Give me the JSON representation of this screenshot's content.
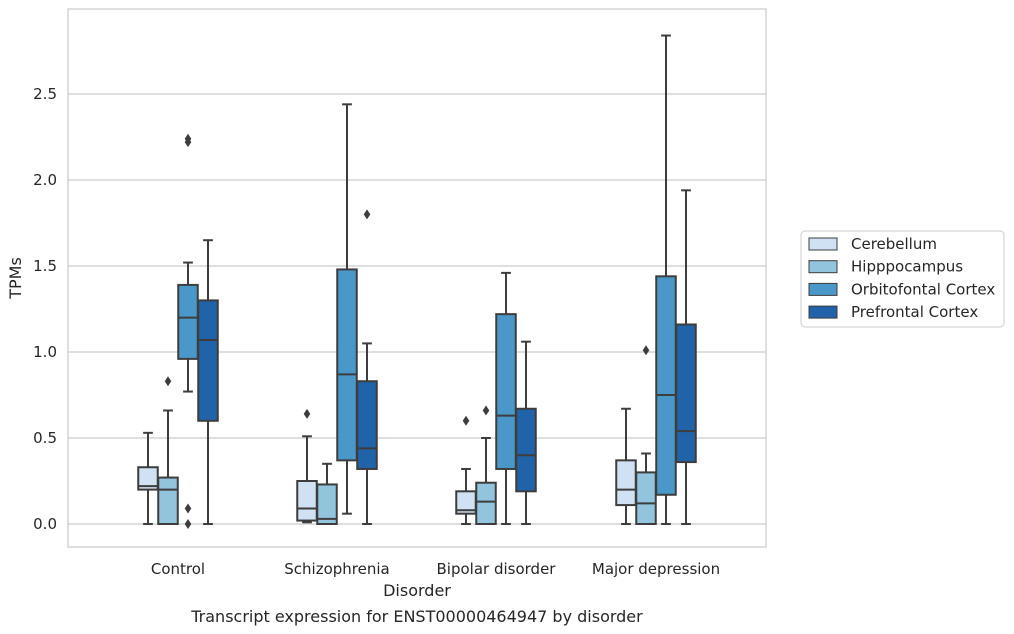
{
  "chart_data": {
    "type": "boxplot",
    "title": "",
    "xlabel": "Disorder",
    "ylabel": "TPMs",
    "caption": "Transcript expression for ENST00000464947 by disorder",
    "ylim": [
      -0.14,
      2.98
    ],
    "yticks": [
      0.0,
      0.5,
      1.0,
      1.5,
      2.0,
      2.5
    ],
    "ytick_labels": [
      "0.0",
      "0.5",
      "1.0",
      "1.5",
      "2.0",
      "2.5"
    ],
    "grid": "horizontal",
    "legend_placement": "right-outside",
    "categories": [
      "Control",
      "Schizophrenia",
      "Bipolar disorder",
      "Major depression"
    ],
    "series": [
      {
        "name": "Cerebellum",
        "color": "#cfe1f2",
        "boxes": [
          {
            "whislo": 0.0,
            "q1": 0.2,
            "med": 0.22,
            "q3": 0.33,
            "whishi": 0.53,
            "fliers": []
          },
          {
            "whislo": 0.01,
            "q1": 0.02,
            "med": 0.09,
            "q3": 0.25,
            "whishi": 0.51,
            "fliers": [
              0.64
            ]
          },
          {
            "whislo": 0.0,
            "q1": 0.06,
            "med": 0.08,
            "q3": 0.19,
            "whishi": 0.32,
            "fliers": [
              0.6
            ]
          },
          {
            "whislo": 0.0,
            "q1": 0.11,
            "med": 0.2,
            "q3": 0.37,
            "whishi": 0.67,
            "fliers": []
          }
        ]
      },
      {
        "name": "Hipppocampus",
        "color": "#93c4de",
        "boxes": [
          {
            "whislo": 0.0,
            "q1": 0.0,
            "med": 0.2,
            "q3": 0.27,
            "whishi": 0.66,
            "fliers": [
              0.83
            ]
          },
          {
            "whislo": 0.0,
            "q1": 0.0,
            "med": 0.03,
            "q3": 0.23,
            "whishi": 0.35,
            "fliers": []
          },
          {
            "whislo": 0.0,
            "q1": 0.0,
            "med": 0.13,
            "q3": 0.24,
            "whishi": 0.5,
            "fliers": [
              0.66
            ]
          },
          {
            "whislo": 0.0,
            "q1": 0.0,
            "med": 0.12,
            "q3": 0.3,
            "whishi": 0.41,
            "fliers": [
              1.01
            ]
          }
        ]
      },
      {
        "name": "Orbitofontal Cortex",
        "color": "#4a98c9",
        "boxes": [
          {
            "whislo": 0.77,
            "q1": 0.96,
            "med": 1.2,
            "q3": 1.39,
            "whishi": 1.52,
            "fliers": [
              0.09,
              0.0,
              2.22,
              2.24
            ]
          },
          {
            "whislo": 0.06,
            "q1": 0.37,
            "med": 0.87,
            "q3": 1.48,
            "whishi": 2.44,
            "fliers": []
          },
          {
            "whislo": 0.0,
            "q1": 0.32,
            "med": 0.63,
            "q3": 1.22,
            "whishi": 1.46,
            "fliers": []
          },
          {
            "whislo": 0.0,
            "q1": 0.17,
            "med": 0.75,
            "q3": 1.44,
            "whishi": 2.84,
            "fliers": []
          }
        ]
      },
      {
        "name": "Prefrontal Cortex",
        "color": "#2163a9",
        "boxes": [
          {
            "whislo": 0.0,
            "q1": 0.6,
            "med": 1.07,
            "q3": 1.3,
            "whishi": 1.65,
            "fliers": []
          },
          {
            "whislo": 0.0,
            "q1": 0.32,
            "med": 0.44,
            "q3": 0.83,
            "whishi": 1.05,
            "fliers": [
              1.8
            ]
          },
          {
            "whislo": 0.0,
            "q1": 0.19,
            "med": 0.4,
            "q3": 0.67,
            "whishi": 1.06,
            "fliers": []
          },
          {
            "whislo": 0.0,
            "q1": 0.36,
            "med": 0.54,
            "q3": 1.16,
            "whishi": 1.94,
            "fliers": []
          }
        ]
      }
    ]
  },
  "style": {
    "grid_color": "#cccccc",
    "frame_color": "#cccccc",
    "box_edge_color": "#3d3d3d",
    "text_color": "#262626"
  }
}
